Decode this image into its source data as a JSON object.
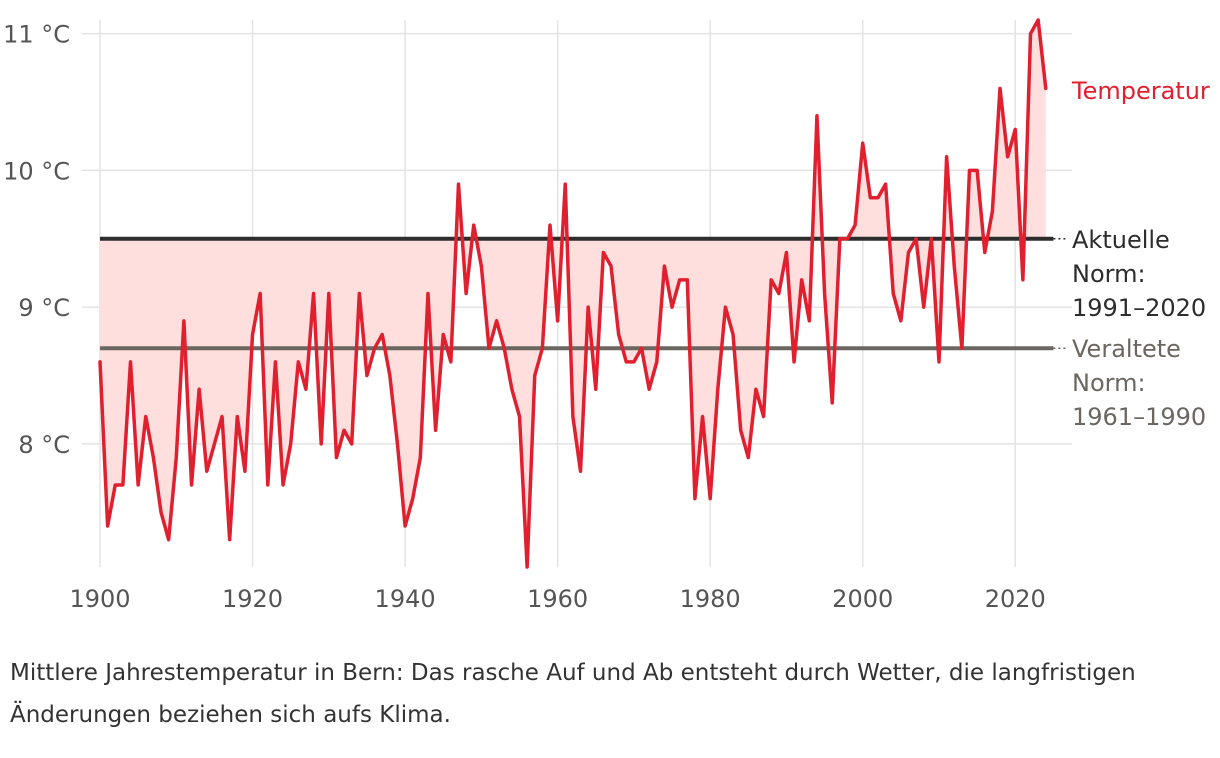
{
  "chart_data": {
    "type": "line",
    "title": "",
    "xlabel": "",
    "ylabel": "",
    "xlim": [
      1900,
      2025
    ],
    "ylim": [
      7.1,
      11.1
    ],
    "x_ticks": [
      1900,
      1920,
      1940,
      1960,
      1980,
      2000,
      2020
    ],
    "x_tick_labels": [
      "1900",
      "1920",
      "1940",
      "1960",
      "1980",
      "2000",
      "2020"
    ],
    "y_ticks": [
      8,
      9,
      10,
      11
    ],
    "y_tick_labels": [
      "8 °C",
      "9 °C",
      "10 °C",
      "11 °C"
    ],
    "grid": true,
    "series": [
      {
        "name": "Temperatur",
        "color": "#e0202f",
        "fill_color": "#ffdede",
        "x": [
          1900,
          1901,
          1902,
          1903,
          1904,
          1905,
          1906,
          1907,
          1908,
          1909,
          1910,
          1911,
          1912,
          1913,
          1914,
          1915,
          1916,
          1917,
          1918,
          1919,
          1920,
          1921,
          1922,
          1923,
          1924,
          1925,
          1926,
          1927,
          1928,
          1929,
          1930,
          1931,
          1932,
          1933,
          1934,
          1935,
          1936,
          1937,
          1938,
          1939,
          1940,
          1941,
          1942,
          1943,
          1944,
          1945,
          1946,
          1947,
          1948,
          1949,
          1950,
          1951,
          1952,
          1953,
          1954,
          1955,
          1956,
          1957,
          1958,
          1959,
          1960,
          1961,
          1962,
          1963,
          1964,
          1965,
          1966,
          1967,
          1968,
          1969,
          1970,
          1971,
          1972,
          1973,
          1974,
          1975,
          1976,
          1977,
          1978,
          1979,
          1980,
          1981,
          1982,
          1983,
          1984,
          1985,
          1986,
          1987,
          1988,
          1989,
          1990,
          1991,
          1992,
          1993,
          1994,
          1995,
          1996,
          1997,
          1998,
          1999,
          2000,
          2001,
          2002,
          2003,
          2004,
          2005,
          2006,
          2007,
          2008,
          2009,
          2010,
          2011,
          2012,
          2013,
          2014,
          2015,
          2016,
          2017,
          2018,
          2019,
          2020,
          2021,
          2022,
          2023,
          2024
        ],
        "values": [
          8.6,
          7.4,
          7.7,
          7.7,
          8.6,
          7.7,
          8.2,
          7.9,
          7.5,
          7.3,
          7.9,
          8.9,
          7.7,
          8.4,
          7.8,
          8.0,
          8.2,
          7.3,
          8.2,
          7.8,
          8.8,
          9.1,
          7.7,
          8.6,
          7.7,
          8.0,
          8.6,
          8.4,
          9.1,
          8.0,
          9.1,
          7.9,
          8.1,
          8.0,
          9.1,
          8.5,
          8.7,
          8.8,
          8.5,
          8.0,
          7.4,
          7.6,
          7.9,
          9.1,
          8.1,
          8.8,
          8.6,
          9.9,
          9.1,
          9.6,
          9.3,
          8.7,
          8.9,
          8.7,
          8.4,
          8.2,
          7.1,
          8.5,
          8.7,
          9.6,
          8.9,
          9.9,
          8.2,
          7.8,
          9.0,
          8.4,
          9.4,
          9.3,
          8.8,
          8.6,
          8.6,
          8.7,
          8.4,
          8.6,
          9.3,
          9.0,
          9.2,
          9.2,
          7.6,
          8.2,
          7.6,
          8.4,
          9.0,
          8.8,
          8.1,
          7.9,
          8.4,
          8.2,
          9.2,
          9.1,
          9.4,
          8.6,
          9.2,
          8.9,
          10.4,
          9.1,
          8.3,
          9.5,
          9.5,
          9.6,
          10.2,
          9.8,
          9.8,
          9.9,
          9.1,
          8.9,
          9.4,
          9.5,
          9.0,
          9.5,
          8.6,
          10.1,
          9.3,
          8.7,
          10.0,
          10.0,
          9.4,
          9.7,
          10.6,
          10.1,
          10.3,
          9.2,
          11.0,
          11.1,
          10.6
        ]
      }
    ],
    "reference_lines": [
      {
        "name": "Aktuelle Norm",
        "value": 9.5,
        "color": "#2d2d2d",
        "label_lines": [
          "Aktuelle",
          "Norm:",
          "1991–2020"
        ]
      },
      {
        "name": "Veraltete Norm",
        "value": 8.7,
        "color": "#6b6660",
        "label_lines": [
          "Veraltete",
          "Norm:",
          "1961–1990"
        ]
      }
    ]
  },
  "caption": "Mittlere Jahrestemperatur in Bern: Das rasche Auf und Ab entsteht durch Wetter, die langfristigen Änderungen beziehen sich aufs Klima."
}
